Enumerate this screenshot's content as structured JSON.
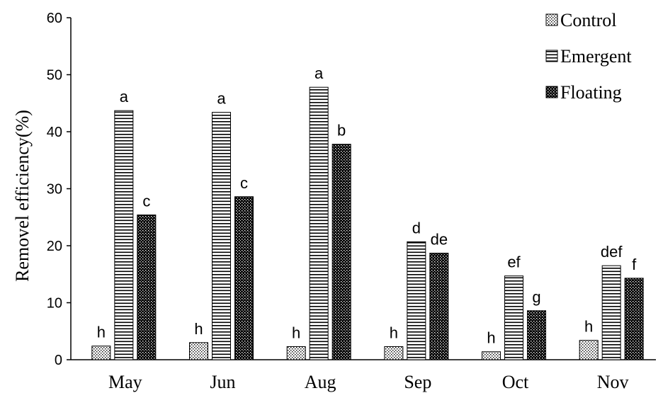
{
  "chart_data": {
    "type": "bar",
    "ylabel": "Removel efficiency(%)",
    "xlabel": "",
    "ylim": [
      0,
      60
    ],
    "yticks": [
      0,
      10,
      20,
      30,
      40,
      50,
      60
    ],
    "grid": false,
    "legend_position": "top-right",
    "categories": [
      "May",
      "Jun",
      "Aug",
      "Sep",
      "Oct",
      "Nov"
    ],
    "series": [
      {
        "name": "Control",
        "pattern": "dots",
        "values": [
          2.4,
          3.0,
          2.3,
          2.3,
          1.4,
          3.4
        ],
        "labels": [
          "h",
          "h",
          "h",
          "h",
          "h",
          "h"
        ]
      },
      {
        "name": "Emergent",
        "pattern": "horizontal-lines",
        "values": [
          43.7,
          43.4,
          47.8,
          20.7,
          14.7,
          16.5
        ],
        "labels": [
          "a",
          "a",
          "a",
          "d",
          "ef",
          "def"
        ]
      },
      {
        "name": "Floating",
        "pattern": "dense-dots",
        "values": [
          25.4,
          28.6,
          37.8,
          18.7,
          8.6,
          14.3
        ],
        "labels": [
          "c",
          "c",
          "b",
          "de",
          "g",
          "f"
        ]
      }
    ]
  }
}
